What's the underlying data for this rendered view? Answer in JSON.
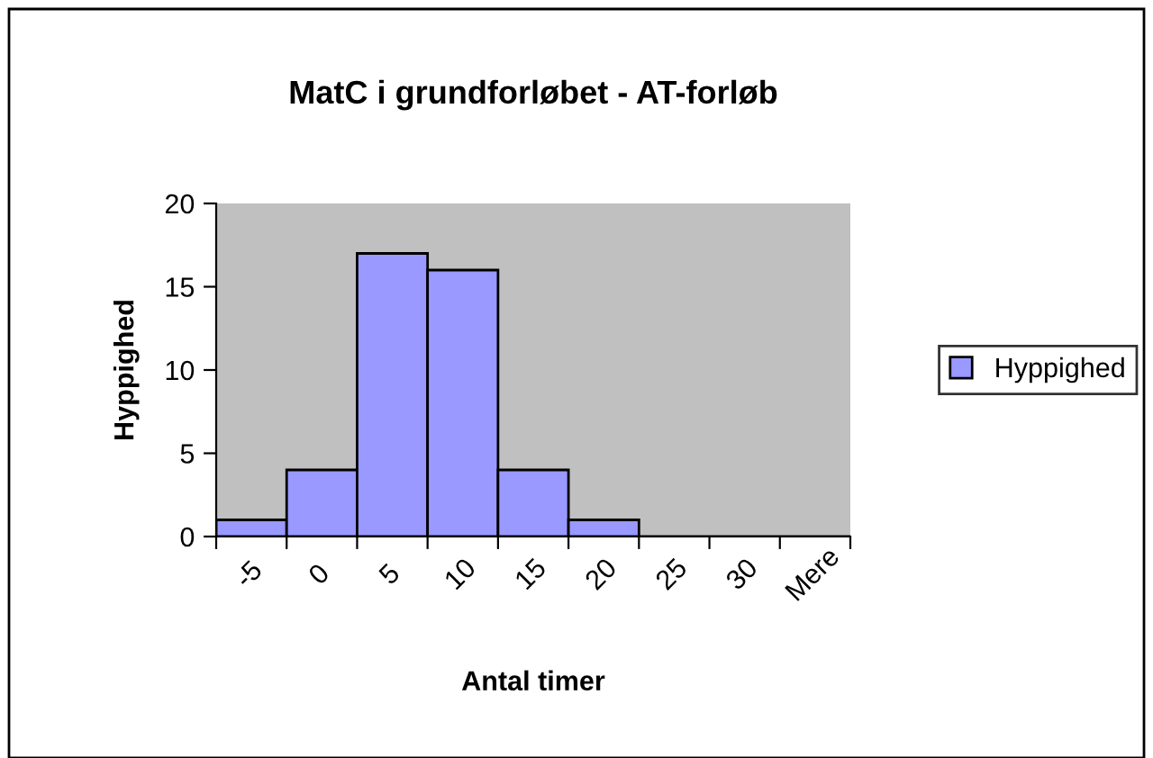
{
  "chart_data": {
    "type": "bar",
    "title": "MatC i grundforløbet - AT-forløb",
    "xlabel": "Antal timer",
    "ylabel": "Hyppighed",
    "categories": [
      "-5",
      "0",
      "5",
      "10",
      "15",
      "20",
      "25",
      "30",
      "Mere"
    ],
    "series": [
      {
        "name": "Hyppighed",
        "color": "#9999ff",
        "values": [
          1,
          4,
          17,
          16,
          4,
          1,
          0,
          0,
          0
        ]
      }
    ],
    "ylim": [
      0,
      20
    ],
    "yticks": [
      0,
      5,
      10,
      15,
      20
    ],
    "grid": false,
    "legend": "right"
  }
}
